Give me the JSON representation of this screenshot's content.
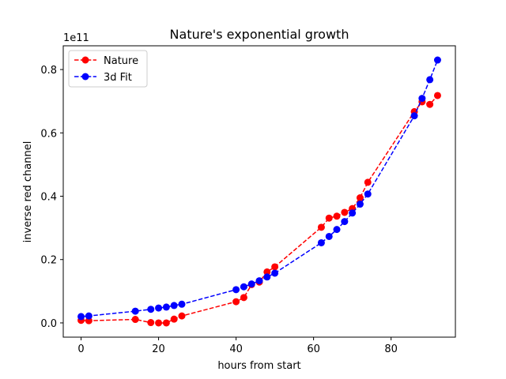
{
  "chart_data": {
    "type": "line",
    "title": "Nature's exponential growth",
    "xlabel": "hours from start",
    "ylabel": "inverse red channel",
    "y_offset_label": "1e11",
    "xlim": [
      -4.6,
      96.6
    ],
    "ylim": [
      -0.045,
      0.875
    ],
    "xticks": [
      0,
      20,
      40,
      60,
      80
    ],
    "yticks": [
      0.0,
      0.2,
      0.4,
      0.6,
      0.8
    ],
    "xtick_labels": [
      "0",
      "20",
      "40",
      "60",
      "80"
    ],
    "ytick_labels": [
      "0.0",
      "0.2",
      "0.4",
      "0.6",
      "0.8"
    ],
    "grid": false,
    "legend_position": "top-left",
    "series": [
      {
        "name": "Nature",
        "color": "#ff0000",
        "line_style": "dashed",
        "marker": "circle",
        "x": [
          0,
          2,
          14,
          18,
          20,
          22,
          24,
          26,
          40,
          42,
          44,
          46,
          48,
          50,
          62,
          64,
          66,
          68,
          70,
          72,
          74,
          86,
          88,
          90,
          92
        ],
        "y": [
          0.008,
          0.007,
          0.011,
          0.001,
          0.0,
          0.0,
          0.012,
          0.022,
          0.067,
          0.08,
          0.121,
          0.129,
          0.161,
          0.177,
          0.302,
          0.331,
          0.337,
          0.349,
          0.361,
          0.395,
          0.444,
          0.667,
          0.698,
          0.69,
          0.718
        ]
      },
      {
        "name": "3d Fit",
        "color": "#0000ff",
        "line_style": "dashed",
        "marker": "circle",
        "x": [
          0,
          2,
          14,
          18,
          20,
          22,
          24,
          26,
          40,
          42,
          44,
          46,
          48,
          50,
          62,
          64,
          66,
          68,
          70,
          72,
          74,
          86,
          88,
          90,
          92
        ],
        "y": [
          0.02,
          0.022,
          0.037,
          0.043,
          0.047,
          0.05,
          0.055,
          0.059,
          0.105,
          0.114,
          0.123,
          0.133,
          0.145,
          0.157,
          0.253,
          0.273,
          0.295,
          0.32,
          0.347,
          0.375,
          0.407,
          0.654,
          0.709,
          0.768,
          0.83
        ]
      }
    ]
  }
}
